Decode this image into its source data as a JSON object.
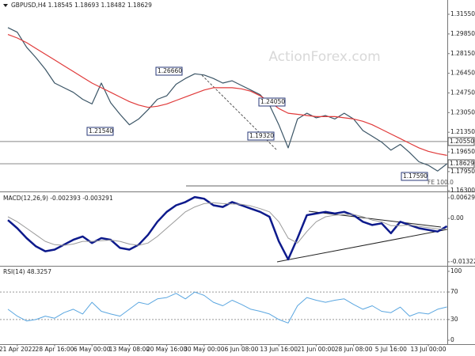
{
  "chart_data": [
    {
      "type": "line",
      "title": "GBPUSD,H4 1.18545 1.18693 1.18482 1.18629",
      "watermark": "ActionForex.com",
      "ylim": [
        1.1637,
        1.3251
      ],
      "yticks": [
        {
          "value": 1.3155,
          "label": "1.31550"
        },
        {
          "value": 1.2985,
          "label": "1.29850"
        },
        {
          "value": 1.2815,
          "label": "1.28150"
        },
        {
          "value": 1.2645,
          "label": "1.26450"
        },
        {
          "value": 1.2475,
          "label": "1.24750"
        },
        {
          "value": 1.2305,
          "label": "1.23050"
        },
        {
          "value": 1.2135,
          "label": "1.21350"
        },
        {
          "value": 1.1965,
          "label": "1.19650"
        },
        {
          "value": 1.1795,
          "label": "1.17950"
        },
        {
          "value": 1.163,
          "label": "1.16300"
        }
      ],
      "levels": [
        {
          "value": 1.2055,
          "label": "1.20550"
        },
        {
          "value": 1.18629,
          "label": "1.18629"
        }
      ],
      "annotations": [
        "1.26660",
        "1.21540",
        "1.19320",
        "1.24050",
        "1.17590",
        "FE 100.0"
      ],
      "series": [
        {
          "name": "GBPUSD",
          "color": "#3b5566",
          "values": [
            1.304,
            1.3,
            1.287,
            1.278,
            1.268,
            1.256,
            1.252,
            1.248,
            1.242,
            1.238,
            1.256,
            1.239,
            1.229,
            1.22,
            1.225,
            1.233,
            1.242,
            1.245,
            1.255,
            1.26,
            1.264,
            1.263,
            1.26,
            1.256,
            1.258,
            1.254,
            1.25,
            1.246,
            1.237,
            1.22,
            1.2,
            1.225,
            1.23,
            1.226,
            1.228,
            1.225,
            1.23,
            1.225,
            1.215,
            1.21,
            1.205,
            1.198,
            1.203,
            1.196,
            1.188,
            1.185,
            1.18,
            1.1863
          ]
        },
        {
          "name": "MA",
          "color": "#e03a3a",
          "values": [
            1.298,
            1.295,
            1.291,
            1.286,
            1.281,
            1.276,
            1.271,
            1.266,
            1.261,
            1.256,
            1.252,
            1.248,
            1.244,
            1.24,
            1.237,
            1.235,
            1.236,
            1.238,
            1.241,
            1.244,
            1.247,
            1.25,
            1.252,
            1.252,
            1.252,
            1.251,
            1.249,
            1.245,
            1.24,
            1.234,
            1.23,
            1.229,
            1.228,
            1.227,
            1.227,
            1.227,
            1.226,
            1.225,
            1.223,
            1.22,
            1.216,
            1.212,
            1.208,
            1.204,
            1.2,
            1.197,
            1.195,
            1.1935
          ]
        }
      ]
    },
    {
      "type": "line",
      "title": "MACD(12,26,9) -0.002393 -0.003291",
      "ylim": [
        -0.0142,
        0.0075
      ],
      "yticks": [
        0.006295,
        {
          "value": 0,
          "label": "0.00"
        },
        -0.013223
      ],
      "series": [
        {
          "name": "MACD",
          "color": "#0d1a8c",
          "width": 2.5,
          "values": [
            -0.0005,
            -0.003,
            -0.006,
            -0.0085,
            -0.01,
            -0.0095,
            -0.008,
            -0.0065,
            -0.0055,
            -0.0075,
            -0.006,
            -0.0065,
            -0.009,
            -0.0095,
            -0.008,
            -0.005,
            -0.001,
            0.002,
            0.004,
            0.005,
            0.0065,
            0.006,
            0.004,
            0.0035,
            0.005,
            0.004,
            0.003,
            0.002,
            0.0005,
            -0.007,
            -0.0125,
            -0.006,
            0.001,
            0.0015,
            0.002,
            0.0015,
            0.002,
            0.001,
            -0.001,
            -0.002,
            -0.0015,
            -0.0045,
            -0.001,
            -0.002,
            -0.003,
            -0.0035,
            -0.004,
            -0.002393
          ]
        },
        {
          "name": "Signal",
          "color": "#9a9a9a",
          "width": 1,
          "values": [
            0.0005,
            -0.001,
            -0.003,
            -0.005,
            -0.007,
            -0.008,
            -0.0082,
            -0.0078,
            -0.007,
            -0.007,
            -0.0068,
            -0.0066,
            -0.007,
            -0.0078,
            -0.0082,
            -0.0075,
            -0.0055,
            -0.003,
            -0.0005,
            0.002,
            0.0035,
            0.0045,
            0.0048,
            0.0045,
            0.0044,
            0.0043,
            0.0038,
            0.003,
            0.002,
            -0.001,
            -0.006,
            -0.0075,
            -0.004,
            -0.001,
            0.0005,
            0.001,
            0.0012,
            0.0012,
            0.0005,
            -0.0005,
            -0.001,
            -0.0022,
            -0.0022,
            -0.002,
            -0.0024,
            -0.0028,
            -0.0032,
            -0.003291
          ]
        }
      ]
    },
    {
      "type": "line",
      "title": "RSI(14) 48.3257",
      "ylim": [
        -5.7,
        105.7
      ],
      "yticks": [
        100,
        70,
        30,
        0
      ],
      "levels": [
        70,
        30
      ],
      "categories": [
        null,
        "21 Apr 2022",
        null,
        null,
        null,
        "28 Apr 16:00",
        null,
        null,
        null,
        "6 May 00:00",
        null,
        null,
        null,
        "13 May 08:00",
        null,
        null,
        null,
        "20 May 16:00",
        null,
        null,
        null,
        "30 May 00:00",
        null,
        null,
        null,
        "6 Jun 08:00",
        null,
        null,
        null,
        "13 Jun 16:00",
        null,
        null,
        null,
        "21 Jun 00:00",
        null,
        null,
        null,
        "28 Jun 08:00",
        null,
        null,
        null,
        "5 Jul 16:00",
        null,
        null,
        null,
        "13 Jul 00:00",
        null,
        null
      ],
      "series": [
        {
          "name": "RSI",
          "color": "#5aa6e0",
          "width": 1,
          "values": [
            45,
            35,
            28,
            30,
            35,
            32,
            40,
            45,
            38,
            55,
            42,
            38,
            35,
            45,
            55,
            52,
            60,
            62,
            68,
            60,
            70,
            65,
            55,
            50,
            58,
            52,
            45,
            42,
            38,
            30,
            25,
            50,
            62,
            58,
            55,
            58,
            60,
            52,
            45,
            50,
            42,
            40,
            48,
            35,
            40,
            38,
            45,
            48.3257
          ]
        }
      ]
    }
  ]
}
